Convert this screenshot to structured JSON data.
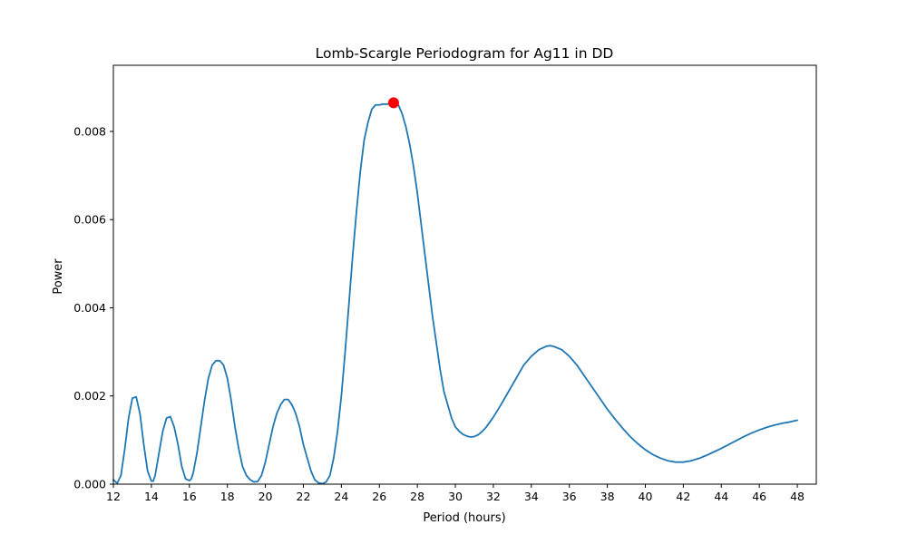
{
  "chart_data": {
    "type": "line",
    "title": "Lomb-Scargle Periodogram for Ag11 in DD",
    "xlabel": "Period (hours)",
    "ylabel": "Power",
    "xlim": [
      12,
      49
    ],
    "ylim": [
      0,
      0.0095
    ],
    "grid": false,
    "xticks": [
      12,
      14,
      16,
      18,
      20,
      22,
      24,
      26,
      28,
      30,
      32,
      34,
      36,
      38,
      40,
      42,
      44,
      46,
      48
    ],
    "xtick_labels": [
      "12",
      "14",
      "16",
      "18",
      "20",
      "22",
      "24",
      "26",
      "28",
      "30",
      "32",
      "34",
      "36",
      "38",
      "40",
      "42",
      "44",
      "46",
      "48"
    ],
    "yticks": [
      0,
      0.002,
      0.004,
      0.006,
      0.008
    ],
    "ytick_labels": [
      "0.000",
      "0.002",
      "0.004",
      "0.006",
      "0.008"
    ],
    "series": [
      {
        "color": "#1f77b4",
        "x": [
          12.0,
          12.2,
          12.4,
          12.6,
          12.8,
          13.0,
          13.2,
          13.4,
          13.6,
          13.8,
          14.0,
          14.1,
          14.2,
          14.4,
          14.6,
          14.8,
          15.0,
          15.2,
          15.4,
          15.6,
          15.8,
          16.0,
          16.1,
          16.2,
          16.4,
          16.6,
          16.8,
          17.0,
          17.2,
          17.4,
          17.6,
          17.8,
          18.0,
          18.2,
          18.4,
          18.6,
          18.8,
          19.0,
          19.2,
          19.4,
          19.6,
          19.8,
          20.0,
          20.2,
          20.4,
          20.6,
          20.8,
          21.0,
          21.2,
          21.4,
          21.6,
          21.8,
          22.0,
          22.2,
          22.4,
          22.6,
          22.8,
          23.0,
          23.2,
          23.4,
          23.6,
          23.8,
          24.0,
          24.2,
          24.4,
          24.6,
          24.8,
          25.0,
          25.2,
          25.4,
          25.6,
          25.8,
          26.0,
          26.2,
          26.4,
          26.6,
          26.8,
          27.0,
          27.2,
          27.4,
          27.6,
          27.8,
          28.0,
          28.2,
          28.4,
          28.6,
          28.8,
          29.0,
          29.2,
          29.4,
          29.6,
          29.8,
          30.0,
          30.2,
          30.4,
          30.6,
          30.8,
          31.0,
          31.2,
          31.4,
          31.6,
          31.8,
          32.0,
          32.4,
          32.8,
          33.2,
          33.6,
          34.0,
          34.4,
          34.8,
          35.0,
          35.2,
          35.6,
          36.0,
          36.4,
          36.8,
          37.2,
          37.6,
          38.0,
          38.4,
          38.8,
          39.2,
          39.6,
          40.0,
          40.4,
          40.8,
          41.2,
          41.6,
          41.8,
          42.0,
          42.4,
          42.8,
          43.2,
          43.6,
          44.0,
          44.4,
          44.8,
          45.2,
          45.6,
          46.0,
          46.4,
          46.8,
          47.2,
          47.6,
          48.0
        ],
        "y": [
          0.0001,
          2e-05,
          0.0002,
          0.0008,
          0.0015,
          0.00195,
          0.00198,
          0.0016,
          0.0009,
          0.0003,
          7e-05,
          7e-05,
          0.0002,
          0.0007,
          0.0012,
          0.0015,
          0.00153,
          0.0013,
          0.0009,
          0.0004,
          0.00012,
          8e-05,
          0.00012,
          0.00025,
          0.0007,
          0.0013,
          0.0019,
          0.0024,
          0.0027,
          0.0028,
          0.0028,
          0.0027,
          0.0024,
          0.0019,
          0.0013,
          0.0008,
          0.0004,
          0.0002,
          0.0001,
          5e-05,
          6e-05,
          0.0002,
          0.0005,
          0.0009,
          0.0013,
          0.0016,
          0.0018,
          0.00192,
          0.00192,
          0.0018,
          0.0016,
          0.0013,
          0.0009,
          0.0006,
          0.0003,
          0.0001,
          3e-05,
          1e-05,
          5e-05,
          0.0002,
          0.0006,
          0.0012,
          0.002,
          0.003,
          0.0041,
          0.0052,
          0.0062,
          0.0071,
          0.0078,
          0.0082,
          0.0085,
          0.0086,
          0.0086,
          0.00862,
          0.00862,
          0.00863,
          0.00863,
          0.0086,
          0.0084,
          0.0081,
          0.0077,
          0.0072,
          0.0066,
          0.0059,
          0.0052,
          0.0045,
          0.0038,
          0.0032,
          0.0026,
          0.0021,
          0.0018,
          0.0015,
          0.0013,
          0.0012,
          0.00113,
          0.00109,
          0.00107,
          0.00108,
          0.00112,
          0.00119,
          0.00128,
          0.0014,
          0.00152,
          0.0018,
          0.0021,
          0.0024,
          0.0027,
          0.0029,
          0.00305,
          0.00313,
          0.00314,
          0.00312,
          0.00305,
          0.0029,
          0.0027,
          0.00245,
          0.0022,
          0.00195,
          0.0017,
          0.00148,
          0.00127,
          0.00108,
          0.00092,
          0.00078,
          0.00067,
          0.00059,
          0.00053,
          0.0005,
          0.0005,
          0.0005,
          0.00053,
          0.00058,
          0.00065,
          0.00073,
          0.00081,
          0.0009,
          0.00099,
          0.00108,
          0.00116,
          0.00123,
          0.00129,
          0.00134,
          0.00138,
          0.00141,
          0.00145
        ]
      }
    ],
    "peak_marker": {
      "x": 26.75,
      "y": 0.00865,
      "color": "#ff0000"
    }
  }
}
